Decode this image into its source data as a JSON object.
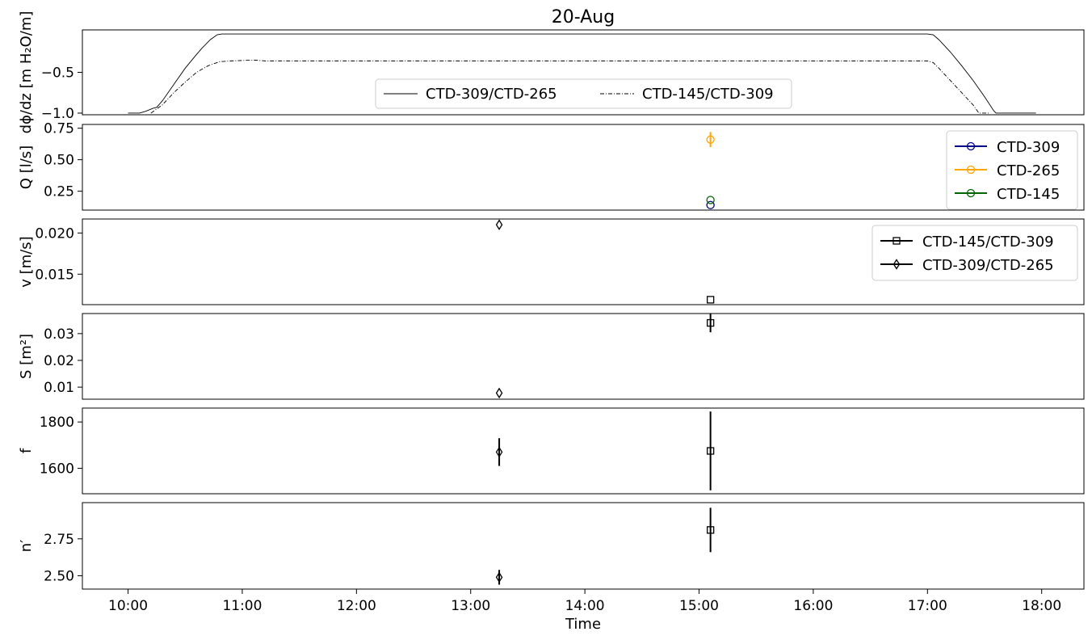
{
  "title": "20-Aug",
  "xlabel": "Time",
  "x_ticks": [
    "10:00",
    "11:00",
    "12:00",
    "13:00",
    "14:00",
    "15:00",
    "16:00",
    "17:00",
    "18:00"
  ],
  "x_range_hours": [
    9.6,
    18.37
  ],
  "chart_data": [
    {
      "type": "line",
      "ylabel": "dϕ/dz [m H₂O/m]",
      "ylim": [
        -1.02,
        0.02
      ],
      "yticks": [
        {
          "v": -0.5,
          "label": "−0.5"
        },
        {
          "v": -1.0,
          "label": "−1.0"
        }
      ],
      "legend": {
        "placement": "lower-center",
        "ncol": 2
      },
      "series": [
        {
          "name": "CTD-309/CTD-265",
          "color": "#000000",
          "style": "solid",
          "x": [
            10.0,
            10.1,
            10.15,
            10.22,
            10.25,
            10.3,
            10.4,
            10.5,
            10.6,
            10.65,
            10.72,
            10.78,
            10.82,
            11.0,
            12.0,
            13.0,
            14.0,
            15.0,
            16.0,
            17.0,
            17.05,
            17.1,
            17.2,
            17.3,
            17.4,
            17.5,
            17.58,
            17.6,
            17.95
          ],
          "y": [
            -1.0,
            -1.0,
            -0.98,
            -0.94,
            -0.93,
            -0.85,
            -0.65,
            -0.45,
            -0.28,
            -0.2,
            -0.1,
            -0.04,
            -0.03,
            -0.03,
            -0.03,
            -0.03,
            -0.03,
            -0.03,
            -0.03,
            -0.03,
            -0.04,
            -0.1,
            -0.25,
            -0.42,
            -0.6,
            -0.8,
            -0.97,
            -1.0,
            -1.0
          ]
        },
        {
          "name": "CTD-145/CTD-309",
          "color": "#000000",
          "style": "dashdot",
          "x": [
            10.2,
            10.3,
            10.4,
            10.5,
            10.6,
            10.7,
            10.8,
            10.9,
            11.0,
            11.1,
            11.2,
            11.5,
            12.0,
            13.0,
            14.0,
            15.0,
            16.0,
            17.0,
            17.05,
            17.1,
            17.2,
            17.3,
            17.4,
            17.45,
            17.55
          ],
          "y": [
            -1.0,
            -0.9,
            -0.75,
            -0.62,
            -0.5,
            -0.42,
            -0.37,
            -0.36,
            -0.355,
            -0.35,
            -0.36,
            -0.36,
            -0.36,
            -0.36,
            -0.36,
            -0.36,
            -0.36,
            -0.36,
            -0.38,
            -0.45,
            -0.6,
            -0.75,
            -0.9,
            -1.0,
            -1.0
          ]
        }
      ]
    },
    {
      "type": "scatter",
      "ylabel": "Q [l/s]",
      "ylim": [
        0.1,
        0.78
      ],
      "yticks": [
        {
          "v": 0.25,
          "label": "0.25"
        },
        {
          "v": 0.5,
          "label": "0.50"
        },
        {
          "v": 0.75,
          "label": "0.75"
        }
      ],
      "legend": {
        "placement": "top-right"
      },
      "series": [
        {
          "name": "CTD-309",
          "color": "#00008b",
          "marker": "circle",
          "x": [
            15.1
          ],
          "y": [
            0.14
          ],
          "err": [
            0.0
          ]
        },
        {
          "name": "CTD-265",
          "color": "#ffa500",
          "marker": "circle",
          "x": [
            15.1
          ],
          "y": [
            0.66
          ],
          "err": [
            0.06
          ]
        },
        {
          "name": "CTD-145",
          "color": "#006400",
          "marker": "circle",
          "x": [
            15.1
          ],
          "y": [
            0.18
          ],
          "err": [
            0.0
          ]
        }
      ]
    },
    {
      "type": "scatter",
      "ylabel": "v [m/s]",
      "ylim": [
        0.0113,
        0.0217
      ],
      "yticks": [
        {
          "v": 0.015,
          "label": "0.015"
        },
        {
          "v": 0.02,
          "label": "0.020"
        }
      ],
      "legend": {
        "placement": "top-right"
      },
      "series": [
        {
          "name": "CTD-145/CTD-309",
          "color": "#000000",
          "marker": "square",
          "x": [
            15.1
          ],
          "y": [
            0.0119
          ],
          "err": [
            0.0
          ]
        },
        {
          "name": "CTD-309/CTD-265",
          "color": "#000000",
          "marker": "diamond",
          "x": [
            13.25
          ],
          "y": [
            0.021
          ],
          "err": [
            0.0
          ]
        }
      ]
    },
    {
      "type": "scatter",
      "ylabel": "S [m²]",
      "ylim": [
        0.0055,
        0.0375
      ],
      "yticks": [
        {
          "v": 0.01,
          "label": "0.01"
        },
        {
          "v": 0.02,
          "label": "0.02"
        },
        {
          "v": 0.03,
          "label": "0.03"
        }
      ],
      "series": [
        {
          "name": "CTD-145/CTD-309",
          "color": "#000000",
          "marker": "square",
          "x": [
            15.1
          ],
          "y": [
            0.034
          ],
          "err": [
            0.0035
          ]
        },
        {
          "name": "CTD-309/CTD-265",
          "color": "#000000",
          "marker": "diamond",
          "x": [
            13.25
          ],
          "y": [
            0.0078
          ],
          "err": [
            0.0
          ]
        }
      ]
    },
    {
      "type": "scatter",
      "ylabel": "f",
      "ylim": [
        1490,
        1860
      ],
      "yticks": [
        {
          "v": 1600,
          "label": "1600"
        },
        {
          "v": 1800,
          "label": "1800"
        }
      ],
      "series": [
        {
          "name": "CTD-145/CTD-309",
          "color": "#000000",
          "marker": "square",
          "x": [
            15.1
          ],
          "y": [
            1675
          ],
          "err": [
            170
          ]
        },
        {
          "name": "CTD-309/CTD-265",
          "color": "#000000",
          "marker": "diamond",
          "x": [
            13.25
          ],
          "y": [
            1670
          ],
          "err": [
            60
          ]
        }
      ]
    },
    {
      "type": "scatter",
      "ylabel": "n′",
      "ylim": [
        2.41,
        2.995
      ],
      "yticks": [
        {
          "v": 2.5,
          "label": "2.50"
        },
        {
          "v": 2.75,
          "label": "2.75"
        }
      ],
      "series": [
        {
          "name": "CTD-145/CTD-309",
          "color": "#000000",
          "marker": "square",
          "x": [
            15.1
          ],
          "y": [
            2.81
          ],
          "err": [
            0.15
          ]
        },
        {
          "name": "CTD-309/CTD-265",
          "color": "#000000",
          "marker": "diamond",
          "x": [
            13.25
          ],
          "y": [
            2.49
          ],
          "err": [
            0.05
          ]
        }
      ]
    }
  ]
}
